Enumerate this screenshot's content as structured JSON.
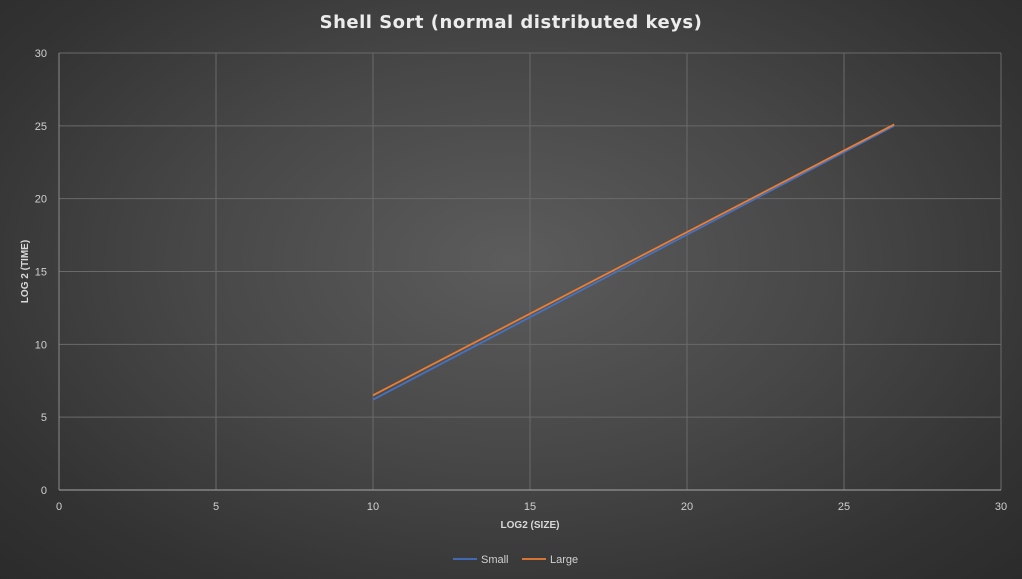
{
  "chart_data": {
    "type": "line",
    "title": "Shell Sort (normal distributed  keys)",
    "xlabel": "LOG2 (SIZE)",
    "ylabel": "LOG 2 (TIME)",
    "xlim": [
      0,
      30
    ],
    "ylim": [
      0,
      30
    ],
    "xticks": [
      0,
      5,
      10,
      15,
      20,
      25,
      30
    ],
    "yticks": [
      0,
      5,
      10,
      15,
      20,
      25,
      30
    ],
    "grid": true,
    "legend_position": "bottom",
    "series": [
      {
        "name": "Small",
        "color": "#4472c4",
        "x": [
          10,
          26.6
        ],
        "y": [
          6.2,
          25.0
        ]
      },
      {
        "name": "Large",
        "color": "#ed7d31",
        "x": [
          10,
          26.6
        ],
        "y": [
          6.5,
          25.1
        ]
      }
    ]
  }
}
